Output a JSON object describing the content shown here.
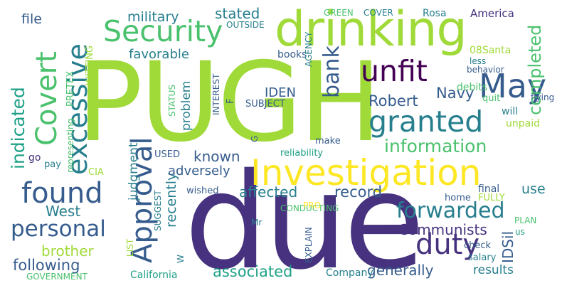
{
  "colors": {
    "background": "#ffffff",
    "palette": [
      "#440154",
      "#46327e",
      "#365c8d",
      "#277f8e",
      "#1fa187",
      "#4ac16d",
      "#a0da39",
      "#fde725"
    ]
  },
  "words": [
    {
      "id": "pugh",
      "text": "PUGH",
      "color": "#a0da39"
    },
    {
      "id": "due",
      "text": "due",
      "color": "#46327e"
    },
    {
      "id": "drinking",
      "text": "drinking",
      "color": "#a0da39"
    },
    {
      "id": "investigation",
      "text": "Investigation",
      "color": "#fde725"
    },
    {
      "id": "security",
      "text": "Security",
      "color": "#4ac16d"
    },
    {
      "id": "unfit",
      "text": "unfit",
      "color": "#440154"
    },
    {
      "id": "may",
      "text": "May",
      "color": "#365c8d"
    },
    {
      "id": "granted",
      "text": "granted",
      "color": "#277f8e"
    },
    {
      "id": "information",
      "text": "information",
      "color": "#4ac16d"
    },
    {
      "id": "found",
      "text": "found",
      "color": "#365c8d"
    },
    {
      "id": "covert",
      "text": "Covert",
      "color": "#4ac16d"
    },
    {
      "id": "excessive",
      "text": "excessive",
      "color": "#277f8e"
    },
    {
      "id": "approval",
      "text": "Approval",
      "color": "#365c8d"
    },
    {
      "id": "indicated",
      "text": "indicated",
      "color": "#1fa187"
    },
    {
      "id": "personal",
      "text": "personal",
      "color": "#365c8d"
    },
    {
      "id": "duty",
      "text": "duty",
      "color": "#46327e"
    },
    {
      "id": "forwarded",
      "text": "forwarded",
      "color": "#277f8e"
    },
    {
      "id": "communists",
      "text": "Communists",
      "color": "#46327e"
    },
    {
      "id": "bank",
      "text": "bank",
      "color": "#365c8d"
    },
    {
      "id": "robert",
      "text": "Robert",
      "color": "#365c8d"
    },
    {
      "id": "navy",
      "text": "Navy",
      "color": "#365c8d"
    },
    {
      "id": "completed",
      "text": "completed",
      "color": "#4ac16d"
    },
    {
      "id": "military",
      "text": "military",
      "color": "#277f8e"
    },
    {
      "id": "stated",
      "text": "stated",
      "color": "#277f8e"
    },
    {
      "id": "file",
      "text": "file",
      "color": "#365c8d"
    },
    {
      "id": "favorable",
      "text": "favorable",
      "color": "#277f8e"
    },
    {
      "id": "known",
      "text": "known",
      "color": "#365c8d"
    },
    {
      "id": "adversely",
      "text": "adversely",
      "color": "#365c8d"
    },
    {
      "id": "affected",
      "text": "affected",
      "color": "#277f8e"
    },
    {
      "id": "record",
      "text": "record",
      "color": "#365c8d"
    },
    {
      "id": "west",
      "text": "West",
      "color": "#277f8e"
    },
    {
      "id": "brother",
      "text": "brother",
      "color": "#a0da39"
    },
    {
      "id": "following",
      "text": "following",
      "color": "#365c8d"
    },
    {
      "id": "associated",
      "text": "associated",
      "color": "#1fa187"
    },
    {
      "id": "generally",
      "text": "generally",
      "color": "#365c8d"
    },
    {
      "id": "results",
      "text": "results",
      "color": "#277f8e"
    },
    {
      "id": "use",
      "text": "use",
      "color": "#277f8e"
    },
    {
      "id": "idsil",
      "text": "IDSil",
      "color": "#365c8d"
    },
    {
      "id": "recently",
      "text": "recently",
      "color": "#277f8e"
    },
    {
      "id": "judgment",
      "text": "judgment",
      "color": "#277f8e"
    },
    {
      "id": "problem",
      "text": "problem",
      "color": "#277f8e"
    },
    {
      "id": "iden",
      "text": "IDEN",
      "color": "#365c8d"
    },
    {
      "id": "america",
      "text": "America",
      "color": "#46327e"
    },
    {
      "id": "rosa",
      "text": "Rosa",
      "color": "#277f8e"
    },
    {
      "id": "green",
      "text": "GREEN",
      "color": "#4ac16d"
    },
    {
      "id": "cover",
      "text": "COVER",
      "color": "#277f8e"
    },
    {
      "id": "outside",
      "text": "OUTSIDE",
      "color": "#277f8e"
    },
    {
      "id": "agency",
      "text": "AGENCY",
      "color": "#277f8e"
    },
    {
      "id": "books",
      "text": "books",
      "color": "#365c8d"
    },
    {
      "id": "08santa",
      "text": "08Santa",
      "color": "#a0da39"
    },
    {
      "id": "less",
      "text": "less",
      "color": "#277f8e"
    },
    {
      "id": "behavior",
      "text": "behavior",
      "color": "#365c8d"
    },
    {
      "id": "debits",
      "text": "debits",
      "color": "#4ac16d"
    },
    {
      "id": "quit",
      "text": "quit",
      "color": "#4ac16d"
    },
    {
      "id": "will",
      "text": "will",
      "color": "#277f8e"
    },
    {
      "id": "unpaid",
      "text": "unpaid",
      "color": "#a0da39"
    },
    {
      "id": "make",
      "text": "make",
      "color": "#365c8d"
    },
    {
      "id": "reliability",
      "text": "reliability",
      "color": "#1fa187"
    },
    {
      "id": "final",
      "text": "final",
      "color": "#365c8d"
    },
    {
      "id": "home",
      "text": "home",
      "color": "#365c8d"
    },
    {
      "id": "fully",
      "text": "FULLY",
      "color": "#a0da39"
    },
    {
      "id": "check",
      "text": "check",
      "color": "#365c8d"
    },
    {
      "id": "salary",
      "text": "salary",
      "color": "#277f8e"
    },
    {
      "id": "plan",
      "text": "PLAN",
      "color": "#4ac16d"
    },
    {
      "id": "us",
      "text": "us",
      "color": "#1fa187"
    },
    {
      "id": "company",
      "text": "Company",
      "color": "#277f8e"
    },
    {
      "id": "california",
      "text": "California",
      "color": "#1fa187"
    },
    {
      "id": "government",
      "text": "GOVERNMENT",
      "color": "#4ac16d"
    },
    {
      "id": "witting",
      "text": "WITTING",
      "color": "#a0da39"
    },
    {
      "id": "pretex",
      "text": "PRETEX",
      "color": "#4ac16d"
    },
    {
      "id": "representing",
      "text": "representing",
      "color": "#4ac16d"
    },
    {
      "id": "go",
      "text": "go",
      "color": "#46327e"
    },
    {
      "id": "pay",
      "text": "pay",
      "color": "#277f8e"
    },
    {
      "id": "cia",
      "text": "CIA",
      "color": "#a0da39"
    },
    {
      "id": "used",
      "text": "USED",
      "color": "#365c8d"
    },
    {
      "id": "wished",
      "text": "wished",
      "color": "#365c8d"
    },
    {
      "id": "suggest",
      "text": "SUGGEST",
      "color": "#277f8e"
    },
    {
      "id": "list",
      "text": "LIST",
      "color": "#a0da39"
    },
    {
      "id": "conducting",
      "text": "CONDUCTING",
      "color": "#277f8e"
    },
    {
      "id": "pro",
      "text": "PRO",
      "color": "#4ac16d"
    },
    {
      "id": "mr",
      "text": "Mr",
      "color": "#fde725"
    },
    {
      "id": "w",
      "text": "W",
      "color": "#277f8e"
    },
    {
      "id": "explain",
      "text": "EXPLAIN",
      "color": "#365c8d"
    },
    {
      "id": "status",
      "text": "STATUS",
      "color": "#4ac16d"
    },
    {
      "id": "subject",
      "text": "SUBJECT",
      "color": "#365c8d"
    },
    {
      "id": "flying",
      "text": "flying",
      "color": "#365c8d"
    },
    {
      "id": "interest",
      "text": "INTEREST",
      "color": "#365c8d"
    },
    {
      "id": "f",
      "text": "F",
      "color": "#365c8d"
    },
    {
      "id": "g",
      "text": "G",
      "color": "#365c8d"
    }
  ]
}
